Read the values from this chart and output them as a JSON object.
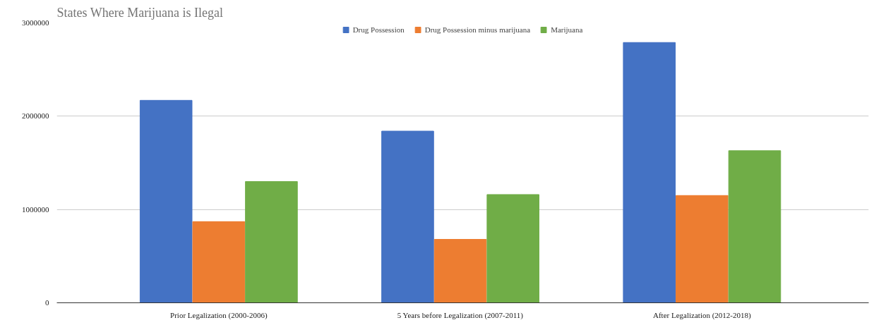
{
  "chart_data": {
    "type": "bar",
    "title": "States Where Marijuana is Ilegal",
    "categories": [
      "Prior Legalization (2000-2006)",
      "5 Years before Legalization (2007-2011)",
      "After Legalization (2012-2018)"
    ],
    "series": [
      {
        "name": "Drug Possession",
        "color": "#4472c4",
        "values": [
          2170000,
          1840000,
          2790000
        ]
      },
      {
        "name": "Drug Possession minus marijuana",
        "color": "#ed7d31",
        "values": [
          870000,
          680000,
          1150000
        ]
      },
      {
        "name": "Marijuana",
        "color": "#70ad47",
        "values": [
          1300000,
          1160000,
          1630000
        ]
      }
    ],
    "ylim": [
      0,
      3000000
    ],
    "yticks": [
      0,
      1000000,
      2000000,
      3000000
    ],
    "grid": "y",
    "legend": "top"
  }
}
